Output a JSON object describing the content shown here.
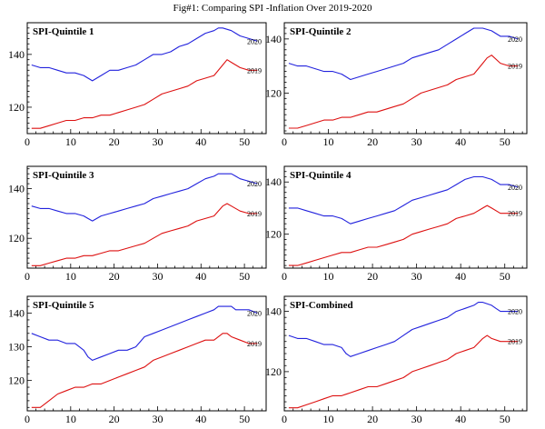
{
  "title": "Fig#1: Comparing SPI -Inflation Over 2019-2020",
  "colors": {
    "y2020": "#2222dd",
    "y2019": "#dd1111",
    "axis": "#000000"
  },
  "chart_data": [
    {
      "type": "line",
      "label": "SPI-Quintile 1",
      "xlim": [
        0,
        55
      ],
      "ylim": [
        110,
        152
      ],
      "xticks": [
        0,
        10,
        20,
        30,
        40,
        50
      ],
      "yticks": [
        120,
        140
      ],
      "series": [
        {
          "name": "2020",
          "x": [
            1,
            3,
            5,
            7,
            9,
            11,
            13,
            14,
            15,
            17,
            19,
            21,
            23,
            25,
            27,
            29,
            31,
            33,
            35,
            37,
            39,
            41,
            43,
            44,
            45,
            47,
            48,
            49,
            51,
            53
          ],
          "y": [
            136,
            135,
            135,
            134,
            133,
            133,
            132,
            131,
            130,
            132,
            134,
            134,
            135,
            136,
            138,
            140,
            140,
            141,
            143,
            144,
            146,
            148,
            149,
            150,
            150,
            149,
            148,
            147,
            146,
            145
          ]
        },
        {
          "name": "2019",
          "x": [
            1,
            3,
            5,
            7,
            9,
            11,
            13,
            15,
            17,
            19,
            21,
            23,
            25,
            27,
            29,
            31,
            33,
            35,
            37,
            39,
            41,
            43,
            45,
            46,
            47,
            49,
            51,
            53
          ],
          "y": [
            112,
            112,
            113,
            114,
            115,
            115,
            116,
            116,
            117,
            117,
            118,
            119,
            120,
            121,
            123,
            125,
            126,
            127,
            128,
            130,
            131,
            132,
            136,
            138,
            137,
            135,
            134,
            134
          ]
        }
      ]
    },
    {
      "type": "line",
      "label": "SPI-Quintile 2",
      "xlim": [
        0,
        55
      ],
      "ylim": [
        105,
        146
      ],
      "xticks": [
        0,
        10,
        20,
        30,
        40,
        50
      ],
      "yticks": [
        120,
        140
      ],
      "series": [
        {
          "name": "2020",
          "x": [
            1,
            3,
            5,
            7,
            9,
            11,
            13,
            14,
            15,
            17,
            19,
            21,
            23,
            25,
            27,
            29,
            31,
            33,
            35,
            37,
            39,
            41,
            43,
            44,
            45,
            47,
            48,
            49,
            51,
            53
          ],
          "y": [
            131,
            130,
            130,
            129,
            128,
            128,
            127,
            126,
            125,
            126,
            127,
            128,
            129,
            130,
            131,
            133,
            134,
            135,
            136,
            138,
            140,
            142,
            144,
            144,
            144,
            143,
            142,
            141,
            141,
            140
          ]
        },
        {
          "name": "2019",
          "x": [
            1,
            3,
            5,
            7,
            9,
            11,
            13,
            15,
            17,
            19,
            21,
            23,
            25,
            27,
            29,
            31,
            33,
            35,
            37,
            39,
            41,
            43,
            45,
            46,
            47,
            49,
            51,
            53
          ],
          "y": [
            107,
            107,
            108,
            109,
            110,
            110,
            111,
            111,
            112,
            113,
            113,
            114,
            115,
            116,
            118,
            120,
            121,
            122,
            123,
            125,
            126,
            127,
            131,
            133,
            134,
            131,
            130,
            130
          ]
        }
      ]
    },
    {
      "type": "line",
      "label": "SPI-Quintile 3",
      "xlim": [
        0,
        55
      ],
      "ylim": [
        108,
        149
      ],
      "xticks": [
        0,
        10,
        20,
        30,
        40,
        50
      ],
      "yticks": [
        120,
        140
      ],
      "series": [
        {
          "name": "2020",
          "x": [
            1,
            3,
            5,
            7,
            9,
            11,
            13,
            14,
            15,
            17,
            19,
            21,
            23,
            25,
            27,
            29,
            31,
            33,
            35,
            37,
            39,
            41,
            43,
            44,
            45,
            47,
            48,
            49,
            51,
            53
          ],
          "y": [
            133,
            132,
            132,
            131,
            130,
            130,
            129,
            128,
            127,
            129,
            130,
            131,
            132,
            133,
            134,
            136,
            137,
            138,
            139,
            140,
            142,
            144,
            145,
            146,
            146,
            146,
            145,
            144,
            143,
            142
          ]
        },
        {
          "name": "2019",
          "x": [
            1,
            3,
            5,
            7,
            9,
            11,
            13,
            15,
            17,
            19,
            21,
            23,
            25,
            27,
            29,
            31,
            33,
            35,
            37,
            39,
            41,
            43,
            45,
            46,
            47,
            49,
            51,
            53
          ],
          "y": [
            109,
            109,
            110,
            111,
            112,
            112,
            113,
            113,
            114,
            115,
            115,
            116,
            117,
            118,
            120,
            122,
            123,
            124,
            125,
            127,
            128,
            129,
            133,
            134,
            133,
            131,
            130,
            130
          ]
        }
      ]
    },
    {
      "type": "line",
      "label": "SPI-Quintile 4",
      "xlim": [
        0,
        55
      ],
      "ylim": [
        107,
        146
      ],
      "xticks": [
        0,
        10,
        20,
        30,
        40,
        50
      ],
      "yticks": [
        120,
        140
      ],
      "series": [
        {
          "name": "2020",
          "x": [
            1,
            3,
            5,
            7,
            9,
            11,
            13,
            14,
            15,
            17,
            19,
            21,
            23,
            25,
            27,
            29,
            31,
            33,
            35,
            37,
            39,
            41,
            43,
            44,
            45,
            47,
            48,
            49,
            51,
            53
          ],
          "y": [
            130,
            130,
            129,
            128,
            127,
            127,
            126,
            125,
            124,
            125,
            126,
            127,
            128,
            129,
            131,
            133,
            134,
            135,
            136,
            137,
            139,
            141,
            142,
            142,
            142,
            141,
            140,
            139,
            139,
            138
          ]
        },
        {
          "name": "2019",
          "x": [
            1,
            3,
            5,
            7,
            9,
            11,
            13,
            15,
            17,
            19,
            21,
            23,
            25,
            27,
            29,
            31,
            33,
            35,
            37,
            39,
            41,
            43,
            45,
            46,
            47,
            49,
            51,
            53
          ],
          "y": [
            108,
            108,
            109,
            110,
            111,
            112,
            113,
            113,
            114,
            115,
            115,
            116,
            117,
            118,
            120,
            121,
            122,
            123,
            124,
            126,
            127,
            128,
            130,
            131,
            130,
            128,
            128,
            128
          ]
        }
      ]
    },
    {
      "type": "line",
      "label": "SPI-Quintile 5",
      "xlim": [
        0,
        55
      ],
      "ylim": [
        111,
        145
      ],
      "xticks": [
        0,
        10,
        20,
        30,
        40,
        50
      ],
      "yticks": [
        120,
        130,
        140
      ],
      "series": [
        {
          "name": "2020",
          "x": [
            1,
            3,
            5,
            7,
            9,
            11,
            13,
            14,
            15,
            17,
            19,
            21,
            23,
            25,
            27,
            29,
            31,
            33,
            35,
            37,
            39,
            41,
            43,
            44,
            45,
            47,
            48,
            49,
            51,
            53
          ],
          "y": [
            134,
            133,
            132,
            132,
            131,
            131,
            129,
            127,
            126,
            127,
            128,
            129,
            129,
            130,
            133,
            134,
            135,
            136,
            137,
            138,
            139,
            140,
            141,
            142,
            142,
            142,
            141,
            141,
            141,
            140
          ]
        },
        {
          "name": "2019",
          "x": [
            1,
            3,
            5,
            7,
            9,
            11,
            13,
            15,
            17,
            19,
            21,
            23,
            25,
            27,
            29,
            31,
            33,
            35,
            37,
            39,
            41,
            43,
            45,
            46,
            47,
            49,
            51,
            53
          ],
          "y": [
            112,
            112,
            114,
            116,
            117,
            118,
            118,
            119,
            119,
            120,
            121,
            122,
            123,
            124,
            126,
            127,
            128,
            129,
            130,
            131,
            132,
            132,
            134,
            134,
            133,
            132,
            131,
            131
          ]
        }
      ]
    },
    {
      "type": "line",
      "label": "SPI-Combined",
      "xlim": [
        0,
        55
      ],
      "ylim": [
        107,
        145
      ],
      "xticks": [
        0,
        10,
        20,
        30,
        40,
        50
      ],
      "yticks": [
        120,
        140
      ],
      "series": [
        {
          "name": "2020",
          "x": [
            1,
            3,
            5,
            7,
            9,
            11,
            13,
            14,
            15,
            17,
            19,
            21,
            23,
            25,
            27,
            29,
            31,
            33,
            35,
            37,
            39,
            41,
            43,
            44,
            45,
            47,
            48,
            49,
            51,
            53
          ],
          "y": [
            132,
            131,
            131,
            130,
            129,
            129,
            128,
            126,
            125,
            126,
            127,
            128,
            129,
            130,
            132,
            134,
            135,
            136,
            137,
            138,
            140,
            141,
            142,
            143,
            143,
            142,
            141,
            140,
            140,
            140
          ]
        },
        {
          "name": "2019",
          "x": [
            1,
            3,
            5,
            7,
            9,
            11,
            13,
            15,
            17,
            19,
            21,
            23,
            25,
            27,
            29,
            31,
            33,
            35,
            37,
            39,
            41,
            43,
            45,
            46,
            47,
            49,
            51,
            53
          ],
          "y": [
            108,
            108,
            109,
            110,
            111,
            112,
            112,
            113,
            114,
            115,
            115,
            116,
            117,
            118,
            120,
            121,
            122,
            123,
            124,
            126,
            127,
            128,
            131,
            132,
            131,
            130,
            130,
            130
          ]
        }
      ]
    }
  ]
}
